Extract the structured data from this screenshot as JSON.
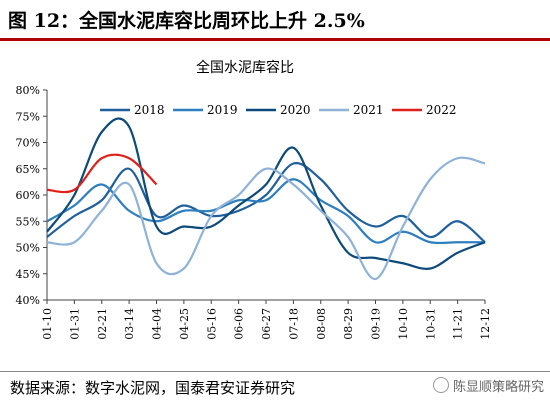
{
  "figure": {
    "title": "图 12：全国水泥库容比周环比上升 2.5%",
    "source": "数据来源：数字水泥网，国泰君安证券研究",
    "watermark": "陈显顺策略研究"
  },
  "colors": {
    "2018": "#1f5f9c",
    "2019": "#2e7fc0",
    "2020": "#0d4a7a",
    "2021": "#8fb2d8",
    "2022": "#e0201b"
  },
  "chart_data": {
    "type": "line",
    "title": "全国水泥库容比",
    "ylim": [
      40,
      80
    ],
    "yticks": [
      "40%",
      "45%",
      "50%",
      "55%",
      "60%",
      "65%",
      "70%",
      "75%",
      "80%"
    ],
    "categories": [
      "01-10",
      "01-31",
      "02-21",
      "03-14",
      "04-04",
      "04-25",
      "05-16",
      "06-06",
      "06-27",
      "07-18",
      "08-08",
      "08-29",
      "09-19",
      "10-10",
      "10-31",
      "11-21",
      "12-12"
    ],
    "legend_position": "top",
    "grid": false,
    "series": [
      {
        "name": "2018",
        "values": [
          52,
          56,
          59,
          65,
          56,
          58,
          56,
          57,
          60,
          66,
          63,
          57,
          54,
          56,
          52,
          55,
          51
        ]
      },
      {
        "name": "2019",
        "values": [
          55,
          58,
          62,
          57,
          55,
          57,
          57,
          59,
          59,
          63,
          59,
          56,
          51,
          53,
          51,
          51,
          51
        ]
      },
      {
        "name": "2020",
        "values": [
          53,
          60,
          72,
          73,
          54,
          54,
          54,
          58,
          62,
          69,
          58,
          49,
          48,
          47,
          46,
          49,
          51
        ]
      },
      {
        "name": "2021",
        "values": [
          51,
          51,
          57,
          62,
          47,
          46,
          56,
          60,
          65,
          62,
          57,
          52,
          44,
          54,
          63,
          67,
          66
        ]
      },
      {
        "name": "2022",
        "values": [
          61,
          61,
          67,
          67,
          62,
          null,
          null,
          null,
          null,
          null,
          null,
          null,
          null,
          null,
          null,
          null,
          null
        ]
      }
    ]
  }
}
